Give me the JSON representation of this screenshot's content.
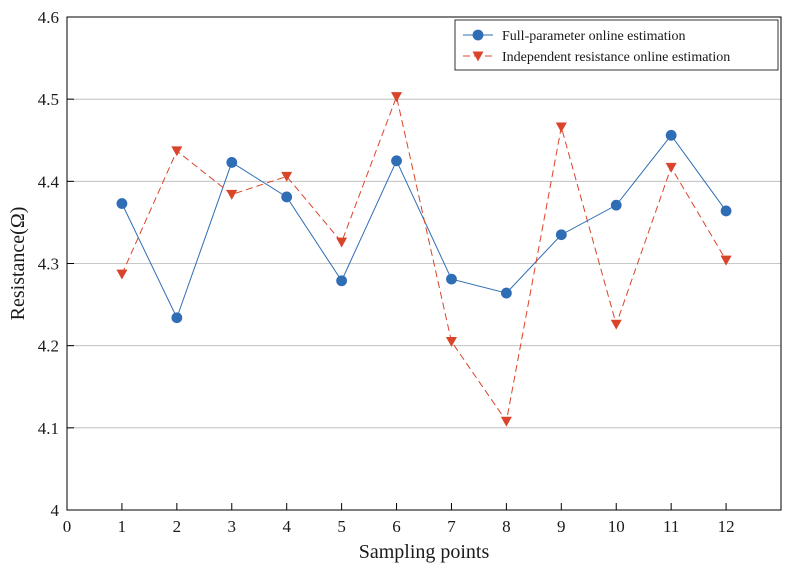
{
  "chart_data": {
    "type": "line",
    "title": "",
    "xlabel": "Sampling points",
    "ylabel": "Resistance(Ω)",
    "xlim": [
      0,
      13
    ],
    "ylim": [
      4,
      4.6
    ],
    "x_ticks": [
      "0",
      "1",
      "2",
      "3",
      "4",
      "5",
      "6",
      "7",
      "8",
      "9",
      "10",
      "11",
      "12"
    ],
    "y_ticks": [
      "4",
      "4.1",
      "4.2",
      "4.3",
      "4.4",
      "4.5",
      "4.6"
    ],
    "grid": "horizontal",
    "legend_position": "top-right",
    "x": [
      1,
      2,
      3,
      4,
      5,
      6,
      7,
      8,
      9,
      10,
      11,
      12
    ],
    "series": [
      {
        "name": "Full-parameter online estimation",
        "color": "#2f6db5",
        "line_style": "solid",
        "marker": "circle",
        "values": [
          4.373,
          4.234,
          4.423,
          4.381,
          4.279,
          4.425,
          4.281,
          4.264,
          4.335,
          4.371,
          4.456,
          4.364
        ]
      },
      {
        "name": "Independent resistance online estimation",
        "color": "#d9442b",
        "line_style": "dashed",
        "marker": "triangle-down",
        "values": [
          4.287,
          4.437,
          4.384,
          4.406,
          4.326,
          4.503,
          4.205,
          4.108,
          4.466,
          4.226,
          4.417,
          4.304
        ]
      }
    ]
  }
}
